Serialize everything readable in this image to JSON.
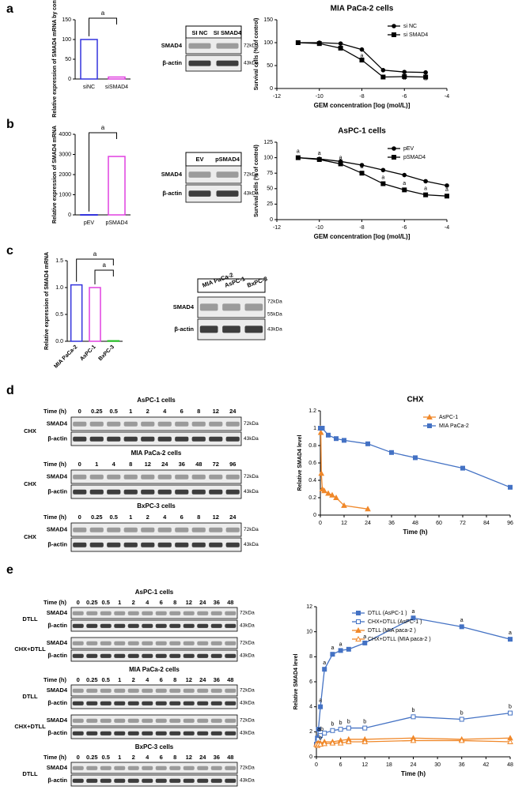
{
  "panels": [
    "a",
    "b",
    "c",
    "d",
    "e"
  ],
  "chart_data": [
    {
      "type": "bar",
      "ylabel": "Relative expression of SMAD4 mRNA by control (%)",
      "categories": [
        "siNC",
        "siSMAD4"
      ],
      "values": [
        100,
        5
      ],
      "colors": [
        "#3333dd",
        "#e040e0"
      ],
      "ylim": [
        0,
        150
      ],
      "yticks": [
        0,
        50,
        100,
        150
      ],
      "significance": [
        "a"
      ]
    },
    {
      "type": "line",
      "title": "MIA PaCa-2 cells",
      "xlabel": "GEM concentration [log (mol/L)]",
      "ylabel": "Survival cells (% of control)",
      "xlim": [
        -12,
        -4
      ],
      "ylim": [
        0,
        150
      ],
      "xticks": [
        -12,
        -10,
        -8,
        -6,
        -4
      ],
      "yticks": [
        0,
        50,
        100,
        150
      ],
      "legend": "upper right",
      "series": [
        {
          "name": "si NC",
          "color": "#000000",
          "marker": "circle",
          "fill": true,
          "x": [
            -11,
            -10,
            -9,
            -8,
            -7,
            -6,
            -5
          ],
          "values": [
            100,
            100,
            98,
            85,
            40,
            36,
            35
          ],
          "annotations": [
            null,
            null,
            null,
            "a",
            "a",
            "a",
            "a"
          ]
        },
        {
          "name": "si SMAD4",
          "color": "#000000",
          "marker": "square",
          "fill": true,
          "x": [
            -11,
            -10,
            -9,
            -8,
            -7,
            -6,
            -5
          ],
          "values": [
            100,
            98,
            88,
            62,
            25,
            26,
            25
          ],
          "annotations": [
            null,
            null,
            null,
            null,
            null,
            null,
            null
          ]
        }
      ]
    },
    {
      "type": "bar",
      "ylabel": "Relative expression of SMAD4 mRNA",
      "categories": [
        "pEV",
        "pSMAD4"
      ],
      "values": [
        10,
        2900
      ],
      "colors": [
        "#3333dd",
        "#e040e0"
      ],
      "ylim": [
        0,
        4000
      ],
      "yticks": [
        0,
        1000,
        2000,
        3000,
        4000
      ],
      "significance": [
        "a"
      ]
    },
    {
      "type": "line",
      "title": "AsPC-1 cells",
      "xlabel": "GEM concentration [log (mol/L)]",
      "ylabel": "Survival cells (% of control)",
      "xlim": [
        -12,
        -4
      ],
      "ylim": [
        0,
        125
      ],
      "xticks": [
        -12,
        -10,
        -8,
        -6,
        -4
      ],
      "yticks": [
        0,
        25,
        50,
        75,
        100,
        125
      ],
      "legend": "upper right",
      "series": [
        {
          "name": "pEV",
          "color": "#000000",
          "marker": "circle",
          "fill": true,
          "x": [
            -11,
            -10,
            -9,
            -8,
            -7,
            -6,
            -5,
            -4
          ],
          "values": [
            100,
            98,
            94,
            88,
            80,
            72,
            62,
            55
          ],
          "annotations": [
            null,
            null,
            null,
            null,
            null,
            null,
            null,
            null
          ]
        },
        {
          "name": "pSMAD4",
          "color": "#000000",
          "marker": "square",
          "fill": true,
          "x": [
            -11,
            -10,
            -9,
            -8,
            -7,
            -6,
            -5,
            -4
          ],
          "values": [
            100,
            97,
            90,
            75,
            58,
            48,
            40,
            38
          ],
          "annotations": [
            "a",
            "a",
            "a",
            "a",
            "a",
            "a",
            "a",
            "a"
          ]
        }
      ]
    },
    {
      "type": "bar",
      "ylabel": "Relative expression of SMAD4 mRNA",
      "categories": [
        "MIA PaCa-2",
        "AsPC-1",
        "BxPC-3"
      ],
      "values": [
        1.05,
        1.0,
        0.01
      ],
      "colors": [
        "#3333dd",
        "#e040e0",
        "#22bb22"
      ],
      "ylim": [
        0,
        1.5
      ],
      "yticks": [
        {
          "value": 0,
          "label": "0.0"
        },
        {
          "value": 0.5,
          "label": "0.5"
        },
        {
          "value": 1,
          "label": "1.0"
        },
        {
          "value": 1.5,
          "label": "1.5"
        }
      ],
      "significance": [
        "a",
        "a"
      ]
    },
    {
      "type": "line",
      "title": "CHX",
      "xlabel": "Time (h)",
      "ylabel": "Relative SMAD4 level",
      "xlim": [
        0,
        96
      ],
      "ylim": [
        0,
        1.2
      ],
      "xticks": [
        0,
        12,
        24,
        36,
        48,
        60,
        72,
        84,
        96
      ],
      "yticks": [
        0,
        0.2,
        0.4,
        0.6,
        0.8,
        1,
        1.2
      ],
      "legend": "upper right",
      "series": [
        {
          "name": "AsPC-1",
          "color": "#f0882a",
          "marker": "triangle",
          "fill": true,
          "x": [
            0,
            0.25,
            0.5,
            1,
            2,
            4,
            6,
            8,
            12,
            24
          ],
          "values": [
            1,
            0.95,
            0.48,
            0.3,
            0.28,
            0.25,
            0.23,
            0.2,
            0.11,
            0.07
          ]
        },
        {
          "name": "MIA PaCa-2",
          "color": "#4472c4",
          "marker": "square",
          "fill": true,
          "x": [
            0,
            1,
            4,
            8,
            12,
            24,
            36,
            48,
            72,
            96
          ],
          "values": [
            1,
            1,
            0.92,
            0.88,
            0.86,
            0.82,
            0.72,
            0.66,
            0.54,
            0.32
          ]
        }
      ]
    },
    {
      "type": "line",
      "xlabel": "Time (h)",
      "ylabel": "Relative SMAD4 level",
      "xlim": [
        0,
        48
      ],
      "ylim": [
        0,
        12
      ],
      "xticks": [
        0,
        6,
        12,
        18,
        24,
        30,
        36,
        42,
        48
      ],
      "yticks": [
        0,
        2,
        4,
        6,
        8,
        10,
        12
      ],
      "legend": "upper right",
      "series": [
        {
          "name": "DTLL (AsPC-1 )",
          "color": "#4472c4",
          "marker": "square",
          "fill": true,
          "x": [
            0,
            0.25,
            0.5,
            1,
            2,
            4,
            6,
            8,
            12,
            24,
            36,
            48
          ],
          "values": [
            1,
            1.5,
            2.2,
            4,
            7,
            8.2,
            8.5,
            8.6,
            9.1,
            11.1,
            10.4,
            9.4
          ],
          "annotations": [
            null,
            null,
            null,
            "a",
            "a",
            "a",
            "a",
            null,
            "a",
            "a",
            "a",
            "a"
          ]
        },
        {
          "name": "CHX+DTLL (AsPC-1 )",
          "color": "#4472c4",
          "marker": "square",
          "fill": false,
          "x": [
            0,
            0.25,
            0.5,
            1,
            2,
            4,
            6,
            8,
            12,
            24,
            36,
            48
          ],
          "values": [
            1,
            1.2,
            1.4,
            1.7,
            1.9,
            2.1,
            2.2,
            2.3,
            2.3,
            3.2,
            3,
            3.5
          ],
          "annotations": [
            null,
            null,
            null,
            "ab",
            null,
            "b",
            "b",
            "b",
            "b",
            "b",
            "b",
            "b"
          ]
        },
        {
          "name": "DTLL (MIA paca-2 )",
          "color": "#f0882a",
          "marker": "triangle",
          "fill": true,
          "x": [
            0,
            0.25,
            0.5,
            1,
            2,
            4,
            6,
            8,
            12,
            24,
            36,
            48
          ],
          "values": [
            1,
            1.05,
            1.1,
            1.1,
            1.2,
            1.2,
            1.3,
            1.4,
            1.4,
            1.5,
            1.4,
            1.5
          ],
          "annotations": [
            null,
            null,
            null,
            null,
            null,
            null,
            null,
            null,
            null,
            null,
            null,
            null
          ]
        },
        {
          "name": "CHX+DTLL (MIA paca-2 )",
          "color": "#f0882a",
          "marker": "triangle",
          "fill": false,
          "x": [
            0,
            0.25,
            0.5,
            1,
            2,
            4,
            6,
            8,
            12,
            24,
            36,
            48
          ],
          "values": [
            1,
            0.9,
            1,
            1,
            1.05,
            1.1,
            1.1,
            1.2,
            1.2,
            1.3,
            1.3,
            1.2
          ],
          "annotations": [
            null,
            null,
            null,
            "b",
            null,
            null,
            null,
            null,
            null,
            null,
            null,
            null
          ]
        }
      ]
    }
  ],
  "blots": [
    {
      "lanes": [
        "SI NC",
        "SI SMAD4"
      ],
      "groups": [
        {
          "rows": [
            {
              "protein": "SMAD4",
              "markers": [
                "72kDa"
              ]
            },
            {
              "protein": "β-actin",
              "markers": [
                "43kDa"
              ]
            }
          ]
        }
      ]
    },
    {
      "lanes": [
        "EV",
        "pSMAD4"
      ],
      "groups": [
        {
          "rows": [
            {
              "protein": "SMAD4",
              "markers": [
                "72kDa"
              ]
            },
            {
              "protein": "β-actin",
              "markers": [
                "43kDa"
              ]
            }
          ]
        }
      ]
    },
    {
      "lanes": [
        "MIA PaCa-2",
        "AsPC-1",
        "BxPC-3"
      ],
      "groups": [
        {
          "rows": [
            {
              "protein": "SMAD4",
              "markers": [
                "72kDa",
                "55kDa"
              ]
            },
            {
              "protein": "β-actin",
              "markers": [
                "43kDa"
              ]
            }
          ]
        }
      ]
    },
    {
      "title": "AsPC-1 cells",
      "time_label": "Time (h)",
      "lanes": [
        "0",
        "0.25",
        "0.5",
        "1",
        "2",
        "4",
        "6",
        "8",
        "12",
        "24"
      ],
      "groups": [
        {
          "label": "CHX",
          "rows": [
            {
              "protein": "SMAD4",
              "markers": [
                "72kDa"
              ]
            },
            {
              "protein": "β-actin",
              "markers": [
                "43kDa"
              ]
            }
          ]
        }
      ]
    },
    {
      "title": "MIA PaCa-2 cells",
      "time_label": "Time (h)",
      "lanes": [
        "0",
        "1",
        "4",
        "8",
        "12",
        "24",
        "36",
        "48",
        "72",
        "96"
      ],
      "groups": [
        {
          "label": "CHX",
          "rows": [
            {
              "protein": "SMAD4",
              "markers": [
                "72kDa"
              ]
            },
            {
              "protein": "β-actin",
              "markers": [
                "43kDa"
              ]
            }
          ]
        }
      ]
    },
    {
      "title": "BxPC-3 cells",
      "time_label": "Time (h)",
      "lanes": [
        "0",
        "0.25",
        "0.5",
        "1",
        "2",
        "4",
        "6",
        "8",
        "12",
        "24"
      ],
      "groups": [
        {
          "label": "CHX",
          "rows": [
            {
              "protein": "SMAD4",
              "markers": [
                "72kDa"
              ]
            },
            {
              "protein": "β-actin",
              "markers": [
                "43kDa"
              ]
            }
          ]
        }
      ]
    },
    {
      "title": "AsPC-1 cells",
      "time_label": "Time (h)",
      "lanes": [
        "0",
        "0.25",
        "0.5",
        "1",
        "2",
        "4",
        "6",
        "8",
        "12",
        "24",
        "36",
        "48"
      ],
      "groups": [
        {
          "label": "DTLL",
          "rows": [
            {
              "protein": "SMAD4",
              "markers": [
                "72kDa"
              ]
            },
            {
              "protein": "β-actin",
              "markers": [
                "43kDa"
              ]
            }
          ]
        },
        {
          "label": "CHX+DTLL",
          "rows": [
            {
              "protein": "SMAD4",
              "markers": [
                "72kDa"
              ]
            },
            {
              "protein": "β-actin",
              "markers": [
                "43kDa"
              ]
            }
          ]
        }
      ]
    },
    {
      "title": "MIA PaCa-2 cells",
      "time_label": "Time (h)",
      "lanes": [
        "0",
        "0.25",
        "0.5",
        "1",
        "2",
        "4",
        "6",
        "8",
        "12",
        "24",
        "36",
        "48"
      ],
      "groups": [
        {
          "label": "DTLL",
          "rows": [
            {
              "protein": "SMAD4",
              "markers": [
                "72kDa"
              ]
            },
            {
              "protein": "β-actin",
              "markers": [
                "43kDa"
              ]
            }
          ]
        },
        {
          "label": "CHX+DTLL",
          "rows": [
            {
              "protein": "SMAD4",
              "markers": [
                "72kDa"
              ]
            },
            {
              "protein": "β-actin",
              "markers": [
                "43kDa"
              ]
            }
          ]
        }
      ]
    },
    {
      "title": "BxPC-3 cells",
      "time_label": "Time (h)",
      "lanes": [
        "0",
        "0.25",
        "0.5",
        "1",
        "2",
        "4",
        "6",
        "8",
        "12",
        "24",
        "36",
        "48"
      ],
      "groups": [
        {
          "label": "DTLL",
          "rows": [
            {
              "protein": "SMAD4",
              "markers": [
                "72kDa"
              ]
            },
            {
              "protein": "β-actin",
              "markers": [
                "43kDa"
              ]
            }
          ]
        }
      ]
    }
  ]
}
